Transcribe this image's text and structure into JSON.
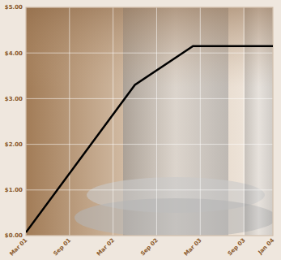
{
  "chart_data": {
    "type": "line",
    "x": [
      "2001-03",
      "2002-06",
      "2003-02",
      "2004-01"
    ],
    "values": [
      0.07,
      3.3,
      4.15,
      4.15
    ],
    "color": "#000000",
    "xlim": [
      "2001-03",
      "2004-01"
    ],
    "xticks": [
      {
        "value": "2001-03",
        "label": "Mar 01"
      },
      {
        "value": "2001-09",
        "label": "Sep 01"
      },
      {
        "value": "2002-03",
        "label": "Mar 02"
      },
      {
        "value": "2002-09",
        "label": "Sep 02"
      },
      {
        "value": "2003-03",
        "label": "Mar 03"
      },
      {
        "value": "2003-09",
        "label": "Sep 03"
      },
      {
        "value": "2004-01",
        "label": "Jan 04"
      }
    ],
    "ylim": [
      0,
      5
    ],
    "yticks": [
      {
        "value": 0,
        "label": "$0.00"
      },
      {
        "value": 1,
        "label": "$1.00"
      },
      {
        "value": 2,
        "label": "$2.00"
      },
      {
        "value": 3,
        "label": "$3.00"
      },
      {
        "value": 4,
        "label": "$4.00"
      },
      {
        "value": 5,
        "label": "$5.00"
      }
    ],
    "grid": true
  }
}
